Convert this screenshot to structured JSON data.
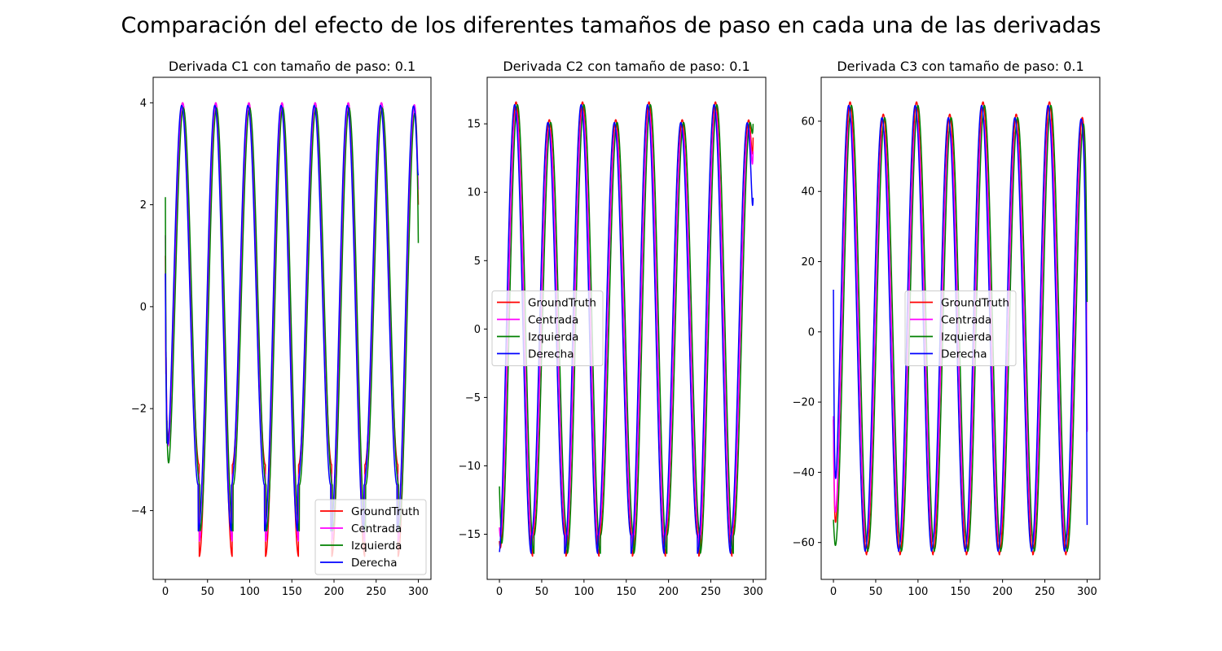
{
  "figure": {
    "title": "Comparación del efecto de los diferentes tamaños de paso en cada una de las derivadas"
  },
  "colors": {
    "GroundTruth": "#ff0000",
    "Centrada": "#ff00ff",
    "Izquierda": "#008000",
    "Derecha": "#0000ff"
  },
  "chart_data": [
    {
      "type": "line",
      "title": "Derivada C1 con tamaño de paso: 0.1",
      "xlim": [
        -14.5,
        315
      ],
      "ylim": [
        -5.35,
        4.5
      ],
      "xticks": [
        0,
        50,
        100,
        150,
        200,
        250,
        300
      ],
      "xtick_labels": [
        "0",
        "50",
        "100",
        "150",
        "200",
        "250",
        "300"
      ],
      "yticks": [
        -4,
        -2,
        0,
        2,
        4
      ],
      "ytick_labels": [
        "−4",
        "−2",
        "0",
        "2",
        "4"
      ],
      "legend": "lower right",
      "period": 39.3,
      "x_range": [
        0,
        300
      ],
      "series": [
        {
          "name": "GroundTruth",
          "model": {
            "max": 4.0,
            "min_even": -3.1,
            "min_odd": -4.9,
            "phase": 0.8
          },
          "end_values": [
            1.0,
            2.0
          ]
        },
        {
          "name": "Centrada",
          "model": {
            "max": 4.0,
            "min_even": -3.3,
            "min_odd": -4.6,
            "phase": 0.8
          },
          "end_values": [
            1.4,
            2.3
          ]
        },
        {
          "name": "Izquierda",
          "model": {
            "max": 3.9,
            "min_even": -3.5,
            "min_odd": -4.4,
            "phase": 1.7
          },
          "end_values": [
            2.15,
            1.25
          ]
        },
        {
          "name": "Derecha",
          "model": {
            "max": 3.95,
            "min_even": -3.5,
            "min_odd": -4.4,
            "phase": -0.3
          },
          "end_values": [
            0.65,
            2.6
          ]
        }
      ]
    },
    {
      "type": "line",
      "title": "Derivada C2 con tamaño de paso: 0.1",
      "xlim": [
        -14.5,
        315
      ],
      "ylim": [
        -18.3,
        18.4
      ],
      "xticks": [
        0,
        50,
        100,
        150,
        200,
        250,
        300
      ],
      "xtick_labels": [
        "0",
        "50",
        "100",
        "150",
        "200",
        "250",
        "300"
      ],
      "yticks": [
        -15,
        -10,
        -5,
        0,
        5,
        10,
        15
      ],
      "ytick_labels": [
        "−15",
        "−10",
        "−5",
        "0",
        "5",
        "10",
        "15"
      ],
      "legend": "center left",
      "period": 39.3,
      "x_range": [
        0,
        300
      ],
      "series": [
        {
          "name": "GroundTruth",
          "model": {
            "max_odd": 16.6,
            "max_even": 15.3,
            "min_odd": -16.6,
            "min_even": -15.3,
            "phase": 0.0
          },
          "end_values": [
            -15.5,
            14.0
          ]
        },
        {
          "name": "Centrada",
          "model": {
            "max_odd": 15.9,
            "max_even": 14.6,
            "min_odd": -15.9,
            "min_even": -14.6,
            "phase": 0.0
          },
          "end_values": [
            -14.5,
            13.0
          ]
        },
        {
          "name": "Izquierda",
          "model": {
            "max_odd": 16.4,
            "max_even": 15.1,
            "min_odd": -16.4,
            "min_even": -15.1,
            "phase": 1.6
          },
          "end_values": [
            -11.5,
            15.0
          ]
        },
        {
          "name": "Derecha",
          "model": {
            "max_odd": 16.4,
            "max_even": 15.1,
            "min_odd": -16.4,
            "min_even": -15.1,
            "phase": -1.6
          },
          "end_values": [
            -16.3,
            9.6
          ]
        }
      ]
    },
    {
      "type": "line",
      "title": "Derivada C3 con tamaño de paso: 0.1",
      "xlim": [
        -14.5,
        315
      ],
      "ylim": [
        -70.5,
        72.5
      ],
      "xticks": [
        0,
        50,
        100,
        150,
        200,
        250,
        300
      ],
      "xtick_labels": [
        "0",
        "50",
        "100",
        "150",
        "200",
        "250",
        "300"
      ],
      "yticks": [
        -60,
        -40,
        -20,
        0,
        20,
        40,
        60
      ],
      "ytick_labels": [
        "−60",
        "−40",
        "−20",
        "0",
        "20",
        "40",
        "60"
      ],
      "legend": "center",
      "period": 39.3,
      "x_range": [
        0,
        300
      ],
      "series": [
        {
          "name": "GroundTruth",
          "model": {
            "max_odd": 65.5,
            "max_even": 62.0,
            "min_odd": -63.5,
            "min_even": -63.0,
            "phase": 0.0
          },
          "end_values": [
            -25.0,
            -28.0
          ]
        },
        {
          "name": "Centrada",
          "model": {
            "max_odd": 61.0,
            "max_even": 57.5,
            "min_odd": -60.0,
            "min_even": -58.5,
            "phase": 0.0
          },
          "end_values": [
            -24.0,
            -28.5
          ]
        },
        {
          "name": "Izquierda",
          "model": {
            "max_odd": 64.5,
            "max_even": 61.0,
            "min_odd": -62.5,
            "min_even": -62.0,
            "phase": 1.6
          },
          "end_values": [
            -53.5,
            8.5
          ]
        },
        {
          "name": "Derecha",
          "model": {
            "max_odd": 64.5,
            "max_even": 61.0,
            "min_odd": -62.5,
            "min_even": -62.0,
            "phase": -1.6
          },
          "end_values": [
            12.0,
            -55.0
          ]
        }
      ]
    }
  ]
}
